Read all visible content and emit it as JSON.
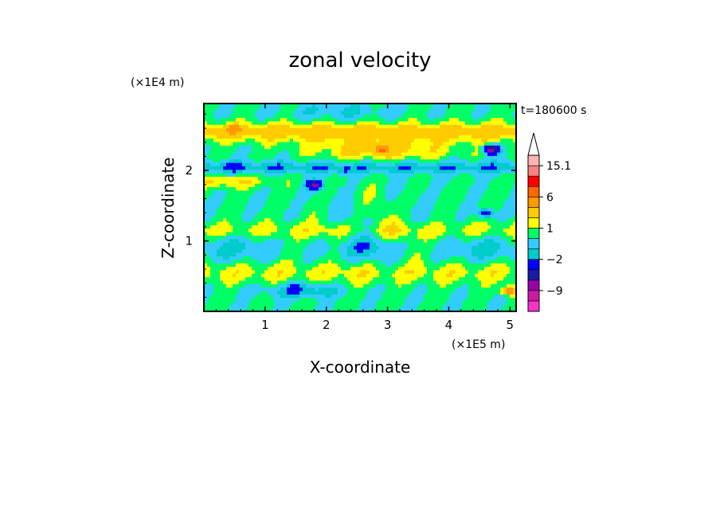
{
  "chart_data": {
    "type": "heatmap",
    "title": "zonal velocity",
    "xlabel": "X-coordinate",
    "ylabel": "Z-coordinate",
    "x_unit": "(×1E5 m)",
    "y_unit": "(×1E4 m)",
    "time_label": "t=180600 s",
    "xlim": [
      0,
      5.1
    ],
    "ylim": [
      0,
      2.95
    ],
    "x_ticks": [
      1,
      2,
      3,
      4,
      5
    ],
    "y_ticks": [
      1,
      2
    ],
    "colorbar": {
      "levels": [
        -15,
        -12,
        -9,
        -6,
        -4,
        -2,
        -1,
        0,
        1,
        2,
        4,
        6,
        9,
        12,
        15.1
      ],
      "labeled_ticks": [
        15.1,
        6,
        1,
        -2,
        -9
      ],
      "colors": [
        "#ff33cc",
        "#cc1aa6",
        "#9900aa",
        "#1a1aa6",
        "#0000ff",
        "#00cccc",
        "#33ccff",
        "#00ff66",
        "#ffff00",
        "#ffcc00",
        "#ff9900",
        "#ff6600",
        "#ff0000",
        "#ff8080",
        "#ffb3b3"
      ],
      "extend_top_color": "#ffffff"
    },
    "features": [
      {
        "x": 0.5,
        "z": 2.6,
        "value": 3
      },
      {
        "x": 2.9,
        "z": 2.3,
        "value": 4
      },
      {
        "x": 4.7,
        "z": 2.3,
        "value": -8
      },
      {
        "x": 1.8,
        "z": 1.8,
        "value": -7
      },
      {
        "x": 0.5,
        "z": 2.05,
        "value": -1.5
      },
      {
        "x": 2.3,
        "z": 2.0,
        "value": -1.5
      },
      {
        "x": 3.2,
        "z": 1.4,
        "value": -0.5
      },
      {
        "x": 4.6,
        "z": 1.4,
        "value": -4
      },
      {
        "x": 1.5,
        "z": 0.35,
        "value": -1.5
      },
      {
        "x": 5.0,
        "z": 0.3,
        "value": 6
      }
    ]
  }
}
